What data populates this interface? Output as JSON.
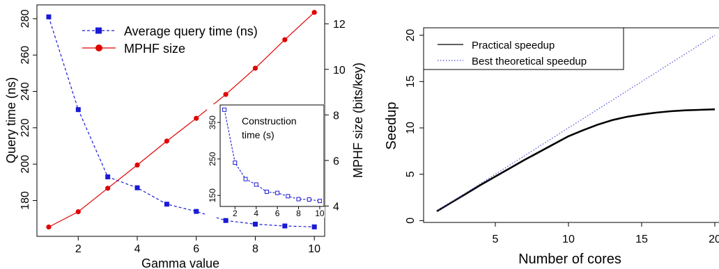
{
  "colors": {
    "blue": "#1a1ad6",
    "red": "#e00000",
    "black": "#000000",
    "dotted_blue": "#4a4ae0"
  },
  "chart_data": [
    {
      "type": "line",
      "xlabel": "Gamma value",
      "ylabel_left": "Query time (ns)",
      "ylabel_right": "MPHF size (bits/key)",
      "x_ticks": [
        "2",
        "4",
        "6",
        "8",
        "10"
      ],
      "y_left_ticks": [
        "180",
        "200",
        "220",
        "240",
        "260",
        "280"
      ],
      "y_right_ticks": [
        "4",
        "6",
        "8",
        "10",
        "12"
      ],
      "xlim": [
        0.6,
        10.35
      ],
      "ylim_left": [
        160.3,
        287.6
      ],
      "ylim_right": [
        2.67,
        12.83
      ],
      "legend_position": "top-left",
      "series": [
        {
          "name": "Average query time (ns)",
          "axis": "left",
          "color": "#1a1ad6",
          "style": "dashed",
          "marker": "square",
          "x": [
            1,
            2,
            3,
            4,
            5,
            6,
            7,
            8,
            9,
            10
          ],
          "values": [
            281,
            230,
            193,
            187,
            178,
            174,
            169,
            167,
            166,
            165.5
          ]
        },
        {
          "name": "MPHF size",
          "axis": "right",
          "color": "#e00000",
          "style": "solid",
          "marker": "circle",
          "x": [
            1,
            2,
            3,
            4,
            5,
            6,
            7,
            8,
            9,
            10
          ],
          "values": [
            3.08,
            3.75,
            4.78,
            5.8,
            6.85,
            7.85,
            8.9,
            10.05,
            11.3,
            12.5
          ]
        }
      ],
      "inset": {
        "label_line1": "Construction",
        "label_line2": "time (s)",
        "x_ticks": [
          "2",
          "4",
          "6",
          "8",
          "10"
        ],
        "y_ticks": [
          "150",
          "250",
          "350"
        ],
        "xlim": [
          0.6,
          10.4
        ],
        "ylim": [
          120,
          398
        ],
        "series": [
          {
            "color": "#1a1ad6",
            "style": "dashed",
            "marker": "open-square",
            "x": [
              1,
              2,
              3,
              4,
              5,
              6,
              7,
              8,
              9,
              10
            ],
            "values": [
              385,
              240,
              195,
              180,
              160,
              157,
              148,
              140,
              139,
              135
            ]
          }
        ]
      }
    },
    {
      "type": "line",
      "xlabel": "Number of cores",
      "ylabel": "Seedup",
      "x_ticks": [
        "5",
        "10",
        "15",
        "20"
      ],
      "y_ticks": [
        "0",
        "5",
        "10",
        "15",
        "20"
      ],
      "xlim": [
        0.1,
        20
      ],
      "ylim": [
        -0.2,
        20.8
      ],
      "legend_position": "top-left",
      "series": [
        {
          "name": "Practical speedup",
          "color": "#000000",
          "style": "solid",
          "x": [
            1,
            2,
            3,
            4,
            5,
            6,
            7,
            8,
            9,
            10,
            11,
            12,
            13,
            14,
            15,
            16,
            17,
            18,
            19,
            20
          ],
          "values": [
            1.0,
            1.95,
            2.9,
            3.85,
            4.75,
            5.65,
            6.55,
            7.4,
            8.25,
            9.1,
            9.75,
            10.35,
            10.85,
            11.2,
            11.45,
            11.65,
            11.8,
            11.9,
            11.95,
            12.0
          ]
        },
        {
          "name": "Best theoretical speedup",
          "color": "#4a4ae0",
          "style": "dotted",
          "x": [
            1,
            20
          ],
          "values": [
            1,
            20
          ]
        }
      ]
    }
  ]
}
